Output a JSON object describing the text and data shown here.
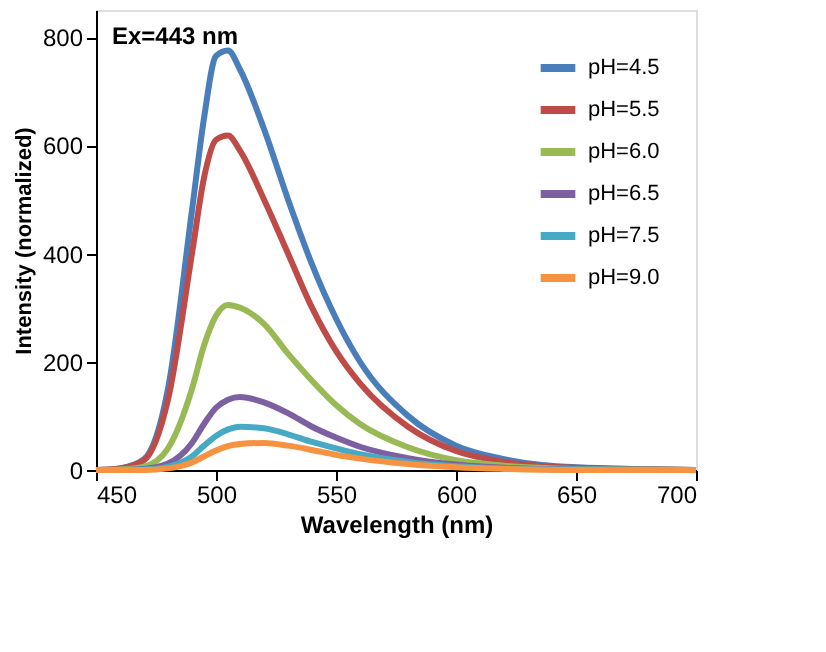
{
  "chart_data": {
    "type": "line",
    "xlabel": "Wavelength (nm)",
    "ylabel": "Intensity (normalized)",
    "annotations": [
      "Ex=443 nm"
    ],
    "x": [
      450,
      460,
      470,
      480,
      490,
      495,
      500,
      505,
      510,
      520,
      530,
      540,
      550,
      560,
      580,
      600,
      620,
      650,
      700
    ],
    "xlim": [
      450,
      700
    ],
    "xticks": [
      450,
      500,
      550,
      600,
      650,
      700
    ],
    "ylim": [
      0,
      850
    ],
    "yticks": [
      0,
      200,
      400,
      600,
      800
    ],
    "grid": false,
    "legend": "top right",
    "marker": "none",
    "line_style": "solid",
    "series": [
      {
        "name": "pH=4.5",
        "color": "#4a7ebb",
        "values": [
          0,
          3,
          20,
          150,
          480,
          650,
          765,
          775,
          740,
          630,
          500,
          380,
          280,
          200,
          100,
          45,
          20,
          5,
          0
        ]
      },
      {
        "name": "pH=5.5",
        "color": "#be4b48",
        "values": [
          0,
          3,
          18,
          130,
          400,
          540,
          610,
          618,
          590,
          500,
          400,
          300,
          220,
          160,
          80,
          35,
          15,
          4,
          0
        ]
      },
      {
        "name": "pH=6.0",
        "color": "#98b954",
        "values": [
          0,
          1,
          6,
          40,
          150,
          230,
          285,
          305,
          300,
          270,
          215,
          165,
          120,
          85,
          42,
          18,
          8,
          2,
          0
        ]
      },
      {
        "name": "pH=6.5",
        "color": "#7d60a0",
        "values": [
          0,
          0,
          2,
          12,
          50,
          85,
          115,
          130,
          135,
          125,
          105,
          80,
          60,
          43,
          22,
          10,
          4,
          1,
          0
        ]
      },
      {
        "name": "pH=7.5",
        "color": "#46aac5",
        "values": [
          0,
          0,
          1,
          6,
          25,
          45,
          63,
          75,
          80,
          77,
          66,
          52,
          40,
          29,
          15,
          7,
          3,
          1,
          0
        ]
      },
      {
        "name": "pH=9.0",
        "color": "#f69240",
        "values": [
          0,
          0,
          0,
          3,
          14,
          25,
          36,
          44,
          48,
          50,
          45,
          37,
          28,
          21,
          11,
          5,
          2,
          0,
          0
        ]
      }
    ]
  }
}
